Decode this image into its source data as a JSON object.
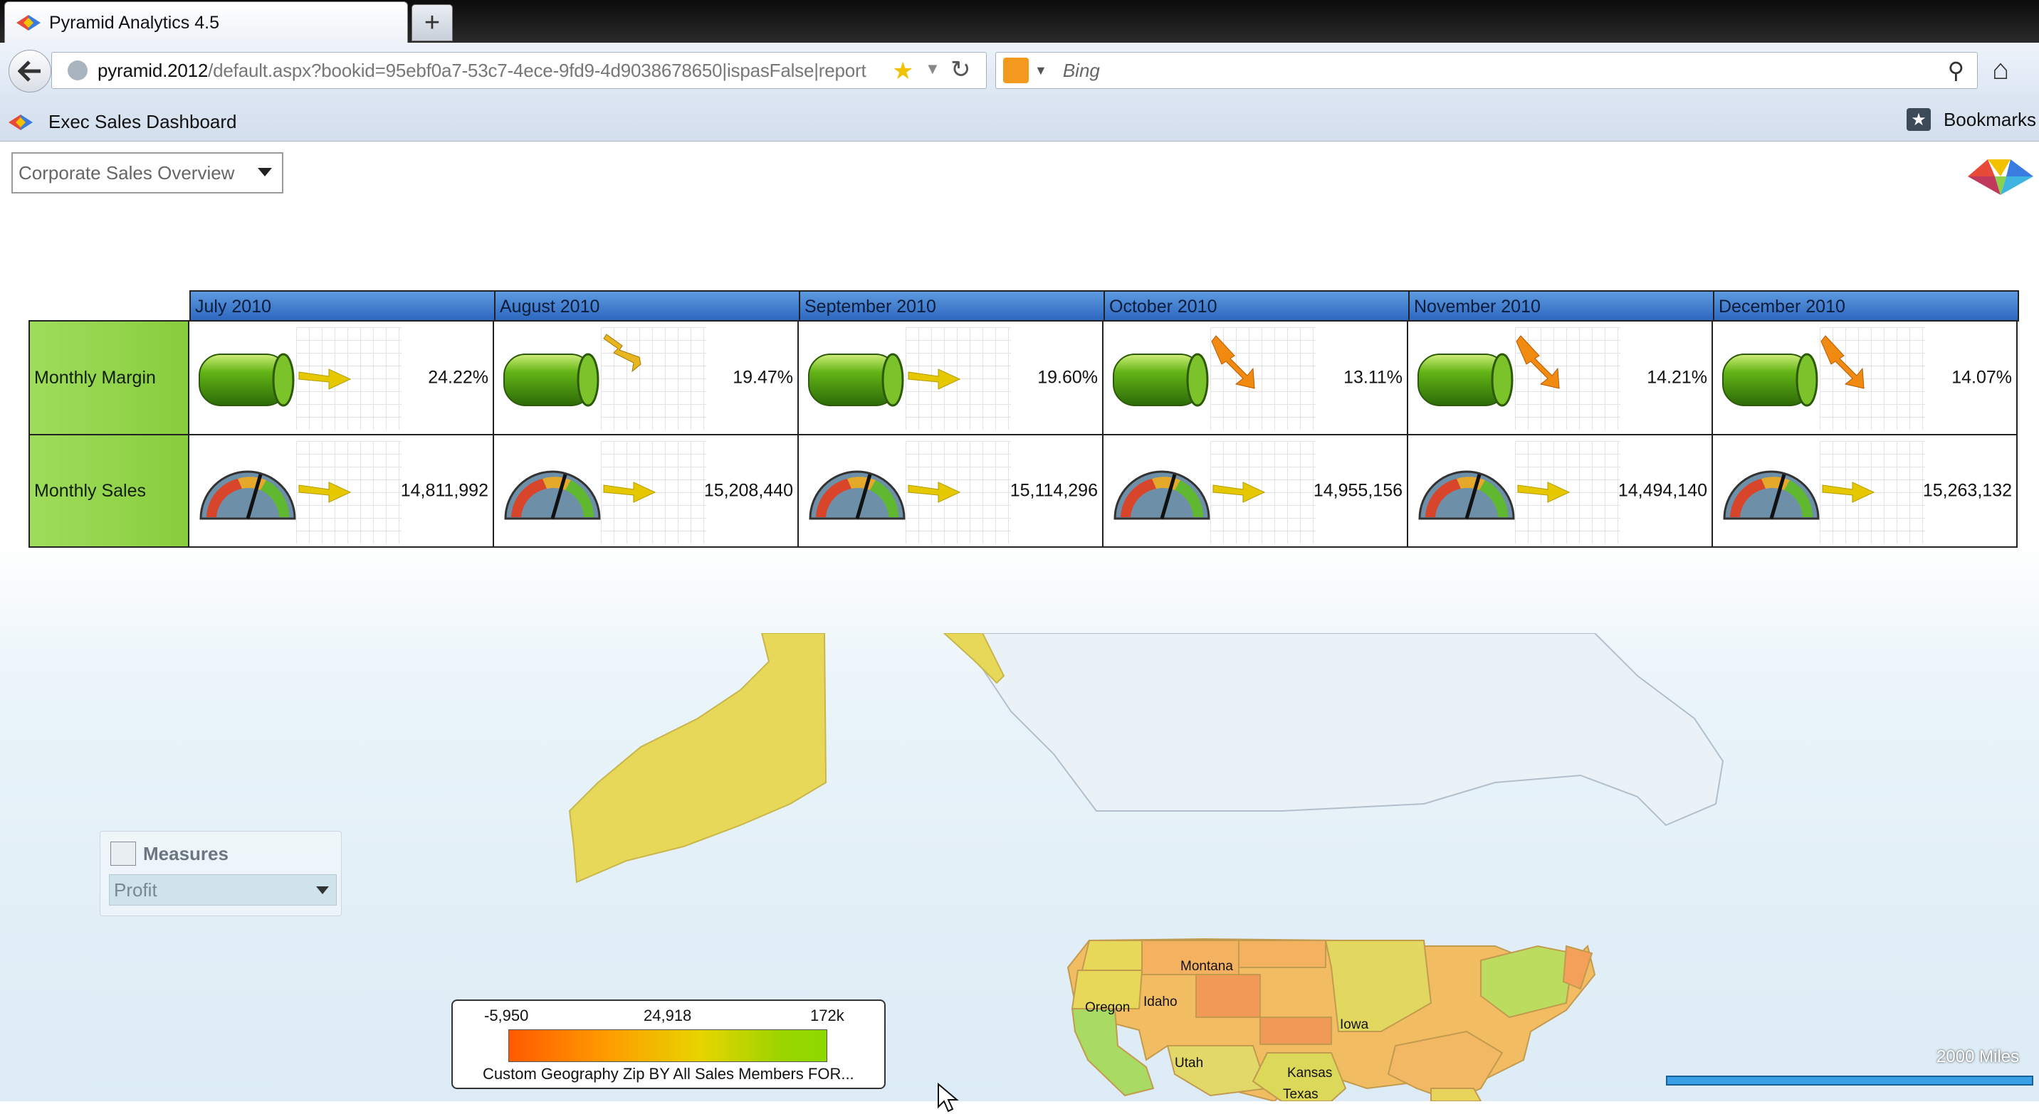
{
  "browser": {
    "tab_title": "Pyramid Analytics 4.5",
    "new_tab_label": "+",
    "url_host": "pyramid.2012",
    "url_path": "/default.aspx?bookid=95ebf0a7-53c7-4ece-9fd9-4d9038678650|ispasFalse|report",
    "search_placeholder": "Bing",
    "bookmark_item": "Exec Sales Dashboard",
    "bookmarks_label": "Bookmarks"
  },
  "report": {
    "selector_value": "Corporate Sales Overview"
  },
  "kpi": {
    "months": [
      "July 2010",
      "August 2010",
      "September 2010",
      "October 2010",
      "November 2010",
      "December 2010"
    ],
    "rows": [
      {
        "label": "Monthly Margin",
        "indicator": "cylinder",
        "values": [
          "24.22%",
          "19.47%",
          "19.60%",
          "13.11%",
          "14.21%",
          "14.07%"
        ],
        "trends": [
          "flat",
          "down",
          "flat",
          "down-steep",
          "down-steep",
          "down-steep"
        ]
      },
      {
        "label": "Monthly Sales",
        "indicator": "gauge",
        "values": [
          "14,811,992",
          "15,208,440",
          "15,114,296",
          "14,955,156",
          "14,494,140",
          "15,263,132"
        ],
        "trends": [
          "flat",
          "flat",
          "flat",
          "flat",
          "flat",
          "flat"
        ]
      }
    ],
    "colors": {
      "header": "#3d78cc",
      "row_header": "#94d44c",
      "flat_arrow": "#e6c800",
      "down_arrow": "#f08a10"
    }
  },
  "map": {
    "state_labels": [
      "Montana",
      "Oregon",
      "Idaho",
      "Iowa",
      "Utah",
      "Kansas",
      "Texas"
    ],
    "measures_title": "Measures",
    "measure_selected": "Profit",
    "legend": {
      "min": "-5,950",
      "mid": "24,918",
      "max": "172k",
      "caption": "Custom Geography Zip BY All Sales Members FOR..."
    },
    "scale_label": "2000 Miles"
  }
}
